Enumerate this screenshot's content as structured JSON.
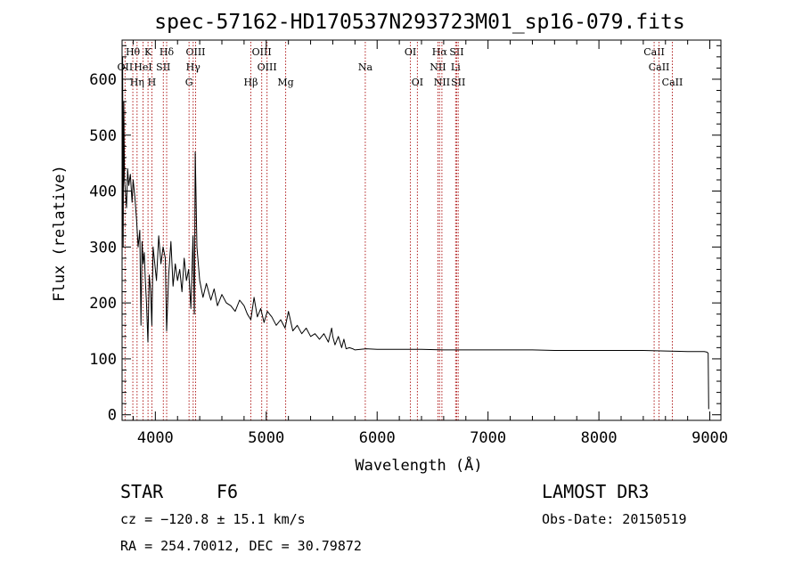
{
  "chart_data": {
    "type": "line",
    "title": "spec-57162-HD170537N293723M01_sp16-079.fits",
    "xlabel": "Wavelength (Å)",
    "ylabel": "Flux (relative)",
    "xlim": [
      3700,
      9100
    ],
    "ylim": [
      -10,
      670
    ],
    "x_ticks": [
      4000,
      5000,
      6000,
      7000,
      8000,
      9000
    ],
    "y_ticks": [
      0,
      100,
      200,
      300,
      400,
      500,
      600
    ],
    "minor_x_step": 200,
    "minor_y_step": 20,
    "grid": false,
    "series": [
      {
        "values_x": [
          3700,
          3705,
          3710,
          3715,
          3722,
          3730,
          3740,
          3750,
          3760,
          3775,
          3790,
          3800,
          3815,
          3830,
          3845,
          3860,
          3870,
          3880,
          3890,
          3900,
          3910,
          3920,
          3933,
          3945,
          3958,
          3968,
          3980,
          3995,
          4010,
          4030,
          4050,
          4070,
          4090,
          4102,
          4120,
          4140,
          4160,
          4180,
          4200,
          4220,
          4240,
          4260,
          4280,
          4300,
          4320,
          4340,
          4352,
          4360,
          4375,
          4400,
          4430,
          4460,
          4500,
          4530,
          4560,
          4600,
          4640,
          4680,
          4720,
          4760,
          4800,
          4830,
          4861,
          4890,
          4920,
          4950,
          4980,
          5010,
          5050,
          5090,
          5130,
          5170,
          5200,
          5240,
          5280,
          5320,
          5360,
          5400,
          5440,
          5480,
          5520,
          5560,
          5590,
          5600,
          5620,
          5650,
          5680,
          5700,
          5720,
          5750,
          5780,
          5800,
          5850,
          5900,
          6000,
          6200,
          6400,
          6600,
          6800,
          7000,
          7200,
          7400,
          7600,
          7800,
          8000,
          8200,
          8400,
          8600,
          8800,
          8950,
          8975,
          8985,
          8990
        ],
        "values_y": [
          260,
          640,
          300,
          560,
          420,
          400,
          370,
          440,
          410,
          430,
          380,
          420,
          390,
          350,
          300,
          330,
          160,
          310,
          270,
          290,
          240,
          200,
          130,
          250,
          220,
          160,
          300,
          270,
          240,
          320,
          270,
          300,
          280,
          150,
          250,
          310,
          230,
          270,
          240,
          260,
          220,
          280,
          240,
          260,
          190,
          320,
          180,
          470,
          300,
          240,
          210,
          235,
          205,
          225,
          195,
          215,
          200,
          195,
          185,
          205,
          195,
          180,
          170,
          210,
          175,
          190,
          165,
          185,
          175,
          160,
          170,
          155,
          185,
          150,
          160,
          145,
          155,
          140,
          145,
          135,
          145,
          130,
          155,
          140,
          125,
          140,
          120,
          135,
          118,
          120,
          118,
          116,
          117,
          118,
          117,
          117,
          117,
          116,
          116,
          116,
          116,
          116,
          115,
          115,
          115,
          115,
          115,
          114,
          113,
          113,
          112,
          110,
          10
        ]
      }
    ]
  },
  "lines": [
    {
      "name": "H-theta",
      "x": 3797,
      "label": "Hθ",
      "row": 1
    },
    {
      "name": "K",
      "x": 3934,
      "label": "K",
      "row": 1
    },
    {
      "name": "H-delta",
      "x": 4102,
      "label": "Hδ",
      "row": 1
    },
    {
      "name": "OIII-a",
      "x": 4363,
      "label": "OIII",
      "row": 1
    },
    {
      "name": "OIII-b",
      "x": 4959,
      "label": "OIII",
      "row": 1
    },
    {
      "name": "OI-a",
      "x": 6300,
      "label": "OI",
      "row": 1
    },
    {
      "name": "H-alpha",
      "x": 6563,
      "label": "Hα",
      "row": 1
    },
    {
      "name": "SII-a",
      "x": 6717,
      "label": "SII",
      "row": 1
    },
    {
      "name": "CaII-a",
      "x": 8498,
      "label": "CaII",
      "row": 1
    },
    {
      "name": "OII",
      "x": 3727,
      "label": "OII",
      "row": 2
    },
    {
      "name": "HeI",
      "x": 3889,
      "label": "HeI",
      "row": 2
    },
    {
      "name": "SII-b",
      "x": 4072,
      "label": "SII",
      "row": 2
    },
    {
      "name": "H-gamma",
      "x": 4341,
      "label": "Hγ",
      "row": 2
    },
    {
      "name": "OIII-c",
      "x": 5007,
      "label": "OIII",
      "row": 2
    },
    {
      "name": "Na",
      "x": 5893,
      "label": "Na",
      "row": 2
    },
    {
      "name": "NII-a",
      "x": 6548,
      "label": "NII",
      "row": 2
    },
    {
      "name": "Li",
      "x": 6708,
      "label": "Li",
      "row": 2
    },
    {
      "name": "CaII-b",
      "x": 8542,
      "label": "CaII",
      "row": 2
    },
    {
      "name": "H-eta",
      "x": 3835,
      "label": "Hη",
      "row": 3
    },
    {
      "name": "H",
      "x": 3969,
      "label": "H",
      "row": 3
    },
    {
      "name": "G",
      "x": 4304,
      "label": "G",
      "row": 3
    },
    {
      "name": "H-beta",
      "x": 4861,
      "label": "Hβ",
      "row": 3
    },
    {
      "name": "Mg",
      "x": 5175,
      "label": "Mg",
      "row": 3
    },
    {
      "name": "OI-b",
      "x": 6363,
      "label": "OI",
      "row": 3
    },
    {
      "name": "NII-b",
      "x": 6584,
      "label": "NII",
      "row": 3
    },
    {
      "name": "SII-c",
      "x": 6731,
      "label": "SII",
      "row": 3
    },
    {
      "name": "CaII-c",
      "x": 8662,
      "label": "CaII",
      "row": 3
    }
  ],
  "info": {
    "object_class": "STAR",
    "subclass": "F6",
    "survey": "LAMOST DR3",
    "redshift": "cz = −120.8 ± 15.1 km/s",
    "obs_date": "Obs-Date: 20150519",
    "coords": "RA = 254.70012, DEC =  30.79872"
  }
}
